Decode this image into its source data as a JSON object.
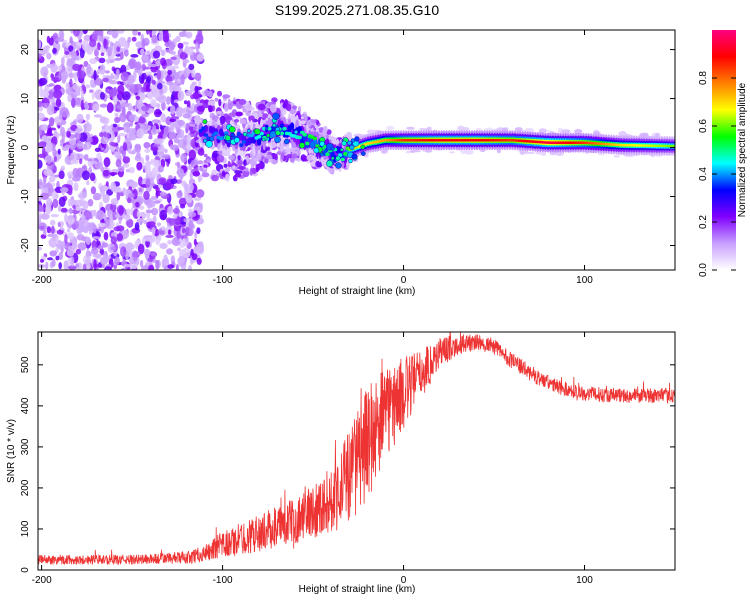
{
  "title": "S199.2025.271.08.35.G10",
  "chart_data": [
    {
      "type": "heatmap",
      "description": "Spectrogram of frequency vs height of straight line",
      "xlabel": "Height of straight line (km)",
      "ylabel": "Frequency (Hz)",
      "xlim": [
        -202,
        150
      ],
      "ylim": [
        -25,
        24
      ],
      "x_ticks": [
        -200,
        -100,
        0,
        100
      ],
      "y_ticks": [
        20,
        10,
        0,
        -10,
        -20
      ],
      "colorbar": {
        "label": "Normalized spectral amplitude",
        "range": [
          0,
          1
        ],
        "ticks": [
          0.0,
          0.2,
          0.4,
          0.6,
          0.8
        ],
        "tick_labels": [
          "0.0",
          "0.2",
          "0.4",
          "0.6",
          "0.8"
        ],
        "colors": [
          "#ffffff",
          "#c8a0ff",
          "#8000ff",
          "#0000ff",
          "#00ffff",
          "#00ff00",
          "#ffff00",
          "#ff8000",
          "#ff0000",
          "#ff0080"
        ]
      },
      "ridge": {
        "x": [
          -110,
          -100,
          -90,
          -80,
          -70,
          -60,
          -50,
          -40,
          -35,
          -30,
          -20,
          -10,
          0,
          20,
          40,
          60,
          80,
          100,
          120,
          150
        ],
        "frequency": [
          3,
          2,
          1.5,
          2,
          4,
          3,
          1,
          -1,
          -1.5,
          -0.5,
          0.8,
          1.5,
          1.5,
          1.5,
          1.5,
          1.5,
          1,
          1,
          0.5,
          0.3
        ],
        "amplitude": [
          0.35,
          0.4,
          0.35,
          0.45,
          0.5,
          0.45,
          0.55,
          0.5,
          0.45,
          0.6,
          0.7,
          0.75,
          0.85,
          0.9,
          0.9,
          0.85,
          0.95,
          0.85,
          0.7,
          0.6
        ]
      }
    },
    {
      "type": "line",
      "description": "SNR vs height of straight line",
      "xlabel": "Height of straight line (km)",
      "ylabel": "SNR (10 * v/v)",
      "xlim": [
        -202,
        150
      ],
      "ylim": [
        0,
        580
      ],
      "x_ticks": [
        -200,
        -100,
        0,
        100
      ],
      "y_ticks": [
        0,
        100,
        200,
        300,
        400,
        500
      ],
      "series": [
        {
          "name": "SNR",
          "color": "#ee3333",
          "envelope_x": [
            -202,
            -150,
            -120,
            -110,
            -100,
            -80,
            -60,
            -40,
            -30,
            -20,
            -10,
            0,
            10,
            20,
            30,
            40,
            50,
            60,
            70,
            80,
            90,
            100,
            120,
            150
          ],
          "envelope_y": [
            25,
            25,
            30,
            40,
            60,
            90,
            120,
            170,
            230,
            310,
            380,
            430,
            480,
            530,
            550,
            555,
            545,
            510,
            480,
            455,
            440,
            430,
            425,
            425
          ],
          "noise_amp": [
            12,
            12,
            15,
            20,
            35,
            45,
            55,
            80,
            120,
            140,
            120,
            90,
            60,
            40,
            25,
            20,
            20,
            20,
            20,
            18,
            18,
            18,
            18,
            18
          ]
        }
      ]
    }
  ]
}
